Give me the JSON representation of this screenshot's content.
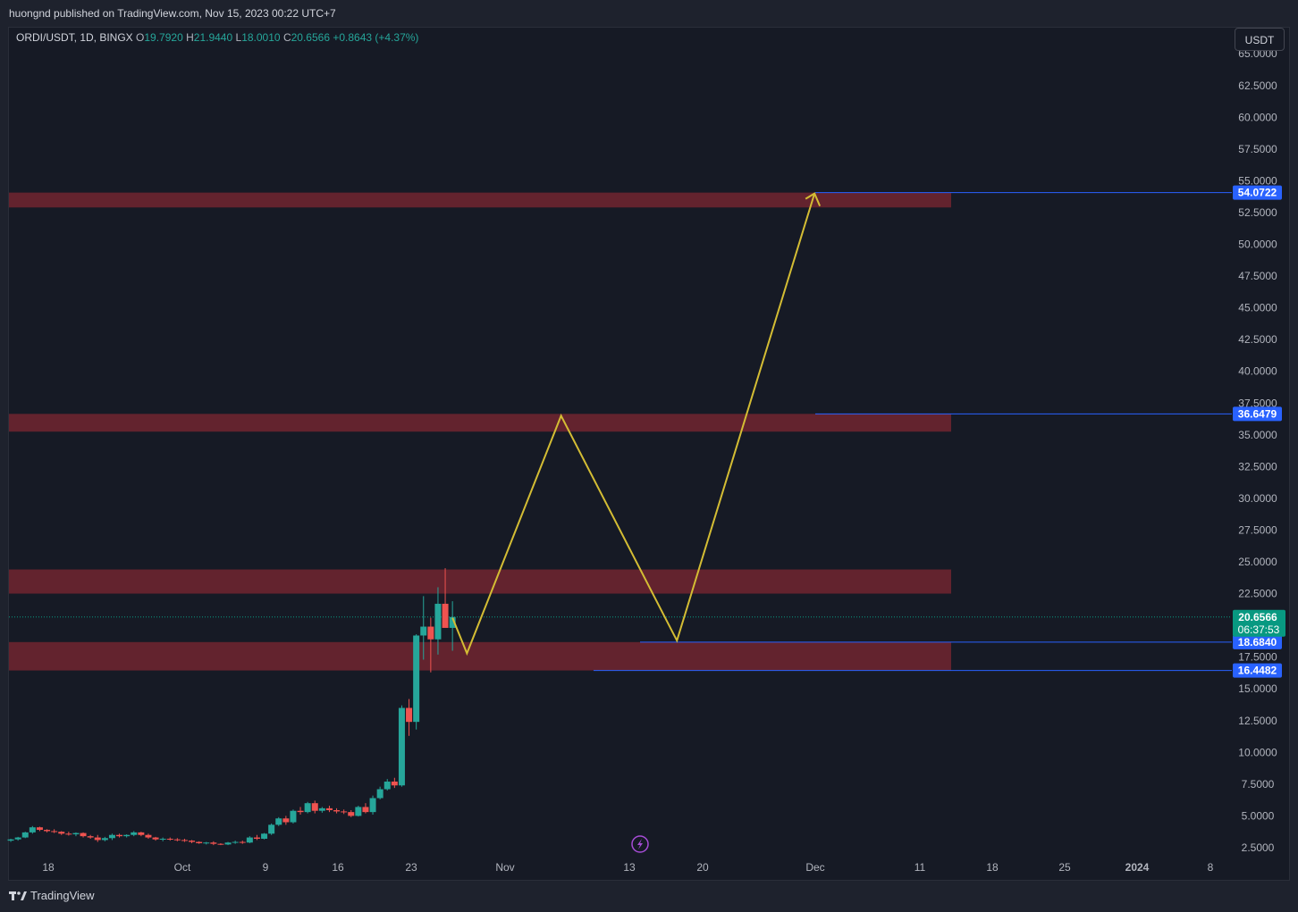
{
  "header": {
    "published_text": "huongnd published on TradingView.com, Nov 15, 2023 00:22 UTC+7"
  },
  "legend": {
    "symbol": "ORDI/USDT, 1D, BINGX",
    "open_label": "O",
    "open": "19.7920",
    "high_label": "H",
    "high": "21.9440",
    "low_label": "L",
    "low": "18.0010",
    "close_label": "C",
    "close": "20.6566",
    "change": "+0.8643 (+4.37%)"
  },
  "currency_button": "USDT",
  "footer": {
    "brand": "TradingView",
    "logo_icon": "tradingview-logo-icon"
  },
  "colors": {
    "background": "#161a25",
    "up": "#26a69a",
    "down": "#ef5350",
    "zone": "#6b2530",
    "level_line": "#2962ff",
    "projection": "#d4bd34",
    "last_price": "#089981"
  },
  "event_icon": "lightning-bolt-icon",
  "chart_data": {
    "type": "candlestick",
    "title": "ORDI/USDT, 1D, BINGX",
    "ylim": [
      0,
      65
    ],
    "y_ticks": [
      "65.0000",
      "62.5000",
      "60.0000",
      "57.5000",
      "55.0000",
      "52.5000",
      "50.0000",
      "47.5000",
      "45.0000",
      "42.5000",
      "40.0000",
      "37.5000",
      "35.0000",
      "32.5000",
      "30.0000",
      "27.5000",
      "25.0000",
      "22.5000",
      "17.5000",
      "15.0000",
      "12.5000",
      "10.0000",
      "7.5000",
      "5.0000",
      "2.5000"
    ],
    "x_ticks": [
      "18",
      "Oct",
      "9",
      "16",
      "23",
      "Nov",
      "13",
      "20",
      "Dec",
      "11",
      "18",
      "25",
      "2024",
      "8"
    ],
    "candles": [
      {
        "o": 3.05,
        "h": 3.2,
        "l": 2.95,
        "c": 3.15
      },
      {
        "o": 3.15,
        "h": 3.35,
        "l": 3.05,
        "c": 3.3
      },
      {
        "o": 3.3,
        "h": 3.75,
        "l": 3.25,
        "c": 3.7
      },
      {
        "o": 3.7,
        "h": 4.2,
        "l": 3.6,
        "c": 4.1
      },
      {
        "o": 4.1,
        "h": 4.15,
        "l": 3.8,
        "c": 3.9
      },
      {
        "o": 3.9,
        "h": 3.95,
        "l": 3.7,
        "c": 3.8
      },
      {
        "o": 3.8,
        "h": 3.95,
        "l": 3.65,
        "c": 3.75
      },
      {
        "o": 3.75,
        "h": 3.8,
        "l": 3.5,
        "c": 3.6
      },
      {
        "o": 3.6,
        "h": 3.75,
        "l": 3.45,
        "c": 3.55
      },
      {
        "o": 3.55,
        "h": 3.7,
        "l": 3.4,
        "c": 3.65
      },
      {
        "o": 3.65,
        "h": 3.7,
        "l": 3.3,
        "c": 3.4
      },
      {
        "o": 3.4,
        "h": 3.5,
        "l": 3.2,
        "c": 3.3
      },
      {
        "o": 3.3,
        "h": 3.5,
        "l": 2.95,
        "c": 3.1
      },
      {
        "o": 3.1,
        "h": 3.35,
        "l": 3.0,
        "c": 3.25
      },
      {
        "o": 3.25,
        "h": 3.6,
        "l": 3.1,
        "c": 3.5
      },
      {
        "o": 3.5,
        "h": 3.6,
        "l": 3.3,
        "c": 3.4
      },
      {
        "o": 3.4,
        "h": 3.55,
        "l": 3.3,
        "c": 3.5
      },
      {
        "o": 3.5,
        "h": 3.8,
        "l": 3.4,
        "c": 3.7
      },
      {
        "o": 3.7,
        "h": 3.75,
        "l": 3.4,
        "c": 3.5
      },
      {
        "o": 3.5,
        "h": 3.6,
        "l": 3.2,
        "c": 3.3
      },
      {
        "o": 3.3,
        "h": 3.35,
        "l": 3.05,
        "c": 3.15
      },
      {
        "o": 3.15,
        "h": 3.3,
        "l": 3.0,
        "c": 3.2
      },
      {
        "o": 3.2,
        "h": 3.3,
        "l": 3.05,
        "c": 3.15
      },
      {
        "o": 3.15,
        "h": 3.25,
        "l": 3.0,
        "c": 3.1
      },
      {
        "o": 3.1,
        "h": 3.2,
        "l": 2.95,
        "c": 3.05
      },
      {
        "o": 3.05,
        "h": 3.1,
        "l": 2.85,
        "c": 2.95
      },
      {
        "o": 2.95,
        "h": 3.0,
        "l": 2.8,
        "c": 2.85
      },
      {
        "o": 2.85,
        "h": 2.95,
        "l": 2.75,
        "c": 2.9
      },
      {
        "o": 2.9,
        "h": 3.0,
        "l": 2.7,
        "c": 2.8
      },
      {
        "o": 2.8,
        "h": 2.85,
        "l": 2.7,
        "c": 2.75
      },
      {
        "o": 2.75,
        "h": 2.95,
        "l": 2.7,
        "c": 2.9
      },
      {
        "o": 2.9,
        "h": 3.05,
        "l": 2.8,
        "c": 2.95
      },
      {
        "o": 2.95,
        "h": 3.05,
        "l": 2.8,
        "c": 2.9
      },
      {
        "o": 2.9,
        "h": 3.4,
        "l": 2.85,
        "c": 3.3
      },
      {
        "o": 3.3,
        "h": 3.5,
        "l": 3.1,
        "c": 3.2
      },
      {
        "o": 3.2,
        "h": 3.65,
        "l": 3.15,
        "c": 3.6
      },
      {
        "o": 3.6,
        "h": 4.4,
        "l": 3.5,
        "c": 4.3
      },
      {
        "o": 4.3,
        "h": 4.9,
        "l": 4.2,
        "c": 4.8
      },
      {
        "o": 4.8,
        "h": 5.0,
        "l": 4.3,
        "c": 4.5
      },
      {
        "o": 4.5,
        "h": 5.5,
        "l": 4.4,
        "c": 5.4
      },
      {
        "o": 5.4,
        "h": 5.7,
        "l": 5.1,
        "c": 5.3
      },
      {
        "o": 5.3,
        "h": 6.1,
        "l": 5.2,
        "c": 6.0
      },
      {
        "o": 6.0,
        "h": 6.2,
        "l": 5.2,
        "c": 5.4
      },
      {
        "o": 5.4,
        "h": 5.7,
        "l": 5.25,
        "c": 5.6
      },
      {
        "o": 5.6,
        "h": 5.8,
        "l": 5.3,
        "c": 5.45
      },
      {
        "o": 5.45,
        "h": 5.6,
        "l": 5.2,
        "c": 5.35
      },
      {
        "o": 5.35,
        "h": 5.5,
        "l": 5.15,
        "c": 5.3
      },
      {
        "o": 5.3,
        "h": 5.45,
        "l": 4.9,
        "c": 5.0
      },
      {
        "o": 5.0,
        "h": 5.8,
        "l": 4.95,
        "c": 5.7
      },
      {
        "o": 5.7,
        "h": 6.0,
        "l": 5.2,
        "c": 5.3
      },
      {
        "o": 5.3,
        "h": 6.6,
        "l": 5.1,
        "c": 6.4
      },
      {
        "o": 6.4,
        "h": 7.3,
        "l": 6.3,
        "c": 7.1
      },
      {
        "o": 7.1,
        "h": 7.9,
        "l": 7.0,
        "c": 7.7
      },
      {
        "o": 7.7,
        "h": 8.0,
        "l": 7.2,
        "c": 7.4
      },
      {
        "o": 7.4,
        "h": 13.7,
        "l": 7.3,
        "c": 13.5
      },
      {
        "o": 13.5,
        "h": 14.2,
        "l": 11.3,
        "c": 12.4
      },
      {
        "o": 12.4,
        "h": 19.3,
        "l": 11.8,
        "c": 19.2
      },
      {
        "o": 19.2,
        "h": 22.3,
        "l": 17.3,
        "c": 19.9
      },
      {
        "o": 19.9,
        "h": 20.6,
        "l": 16.3,
        "c": 18.9
      },
      {
        "o": 18.9,
        "h": 23.0,
        "l": 17.7,
        "c": 21.7
      },
      {
        "o": 21.7,
        "h": 24.5,
        "l": 19.9,
        "c": 19.8
      },
      {
        "o": 19.8,
        "h": 21.9,
        "l": 18.0,
        "c": 20.6566
      }
    ],
    "zones": [
      {
        "top": 54.07,
        "bottom": 52.9
      },
      {
        "top": 36.65,
        "bottom": 35.25
      },
      {
        "top": 24.4,
        "bottom": 22.5
      },
      {
        "top": 18.684,
        "bottom": 16.4482
      }
    ],
    "price_levels": [
      {
        "value": 54.0722,
        "label": "54.0722"
      },
      {
        "value": 36.6479,
        "label": "36.6479"
      },
      {
        "value": 18.684,
        "label": "18.6840"
      },
      {
        "value": 16.4482,
        "label": "16.4482"
      }
    ],
    "last_price": {
      "value": 20.6566,
      "label": "20.6566",
      "countdown": "06:37:53"
    },
    "projection_path": [
      {
        "day": 61,
        "value": 20.6
      },
      {
        "day": 63,
        "value": 17.8
      },
      {
        "day": 76,
        "value": 36.5
      },
      {
        "day": 92,
        "value": 18.8
      },
      {
        "day": 111,
        "value": 54.0
      }
    ]
  }
}
